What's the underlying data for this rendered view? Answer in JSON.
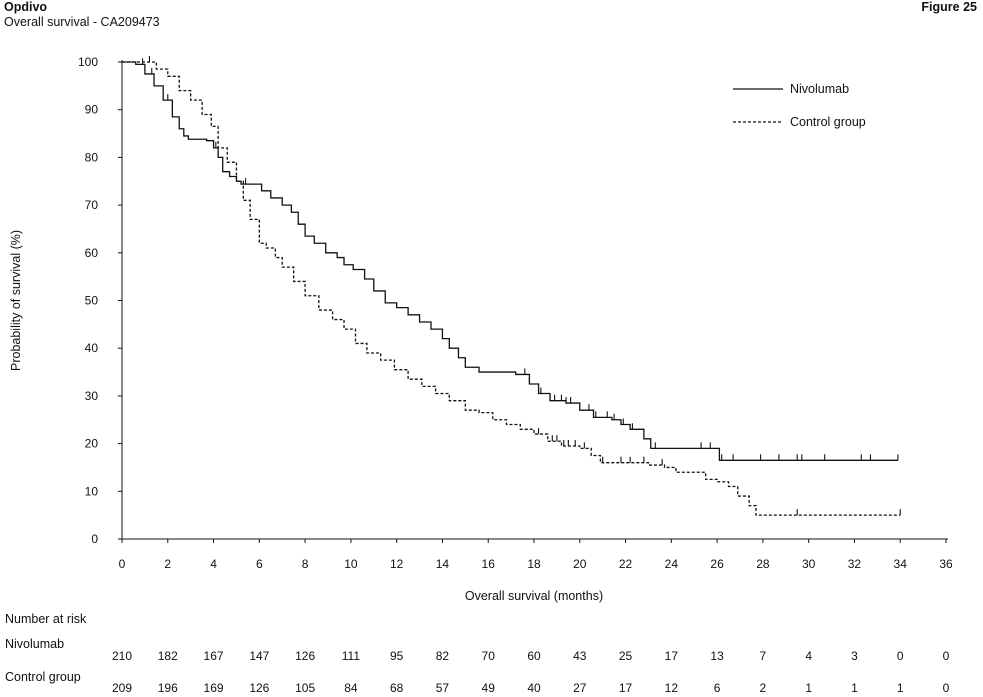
{
  "header": {
    "title": "Opdivo",
    "subtitle": "Overall survival - CA209473",
    "figure": "Figure 25"
  },
  "risk_table": {
    "heading": "Number at risk",
    "rows": [
      {
        "label": "Nivolumab",
        "values": [
          "210",
          "182",
          "167",
          "147",
          "126",
          "111",
          "95",
          "82",
          "70",
          "60",
          "43",
          "25",
          "17",
          "13",
          "7",
          "4",
          "3",
          "0",
          "0"
        ]
      },
      {
        "label": "Control group",
        "values": [
          "209",
          "196",
          "169",
          "126",
          "105",
          "84",
          "68",
          "57",
          "49",
          "40",
          "27",
          "17",
          "12",
          "6",
          "2",
          "1",
          "1",
          "1",
          "0"
        ]
      }
    ]
  },
  "chart_data": {
    "type": "line",
    "step": true,
    "xlabel": "Overall survival (months)",
    "ylabel": "Probability of survival (%)",
    "xlim": [
      0,
      36
    ],
    "ylim": [
      0,
      100
    ],
    "xticks": [
      0,
      2,
      4,
      6,
      8,
      10,
      12,
      14,
      16,
      18,
      20,
      22,
      24,
      26,
      28,
      30,
      32,
      34,
      36
    ],
    "yticks": [
      0,
      10,
      20,
      30,
      40,
      50,
      60,
      70,
      80,
      90,
      100
    ],
    "grid": false,
    "legend_position": "top-right",
    "series": [
      {
        "name": "Nivolumab",
        "line_style": "solid",
        "points": [
          [
            0,
            100
          ],
          [
            0.6,
            99.5
          ],
          [
            1.0,
            97.5
          ],
          [
            1.4,
            95
          ],
          [
            1.8,
            92
          ],
          [
            2.2,
            88.5
          ],
          [
            2.5,
            86
          ],
          [
            2.7,
            84.5
          ],
          [
            2.9,
            83.8
          ],
          [
            3.7,
            83.5
          ],
          [
            4.0,
            82
          ],
          [
            4.2,
            80
          ],
          [
            4.4,
            77
          ],
          [
            4.7,
            76
          ],
          [
            5.0,
            75
          ],
          [
            5.2,
            74.4
          ],
          [
            5.8,
            74.4
          ],
          [
            6.1,
            73
          ],
          [
            6.5,
            71.5
          ],
          [
            7.0,
            70
          ],
          [
            7.4,
            68.5
          ],
          [
            7.7,
            66
          ],
          [
            8.0,
            63.5
          ],
          [
            8.4,
            62
          ],
          [
            8.9,
            60
          ],
          [
            9.4,
            59
          ],
          [
            9.7,
            57.5
          ],
          [
            10.1,
            56.5
          ],
          [
            10.6,
            54.5
          ],
          [
            11.0,
            52
          ],
          [
            11.5,
            49.5
          ],
          [
            12.0,
            48.5
          ],
          [
            12.5,
            47
          ],
          [
            13.0,
            45.5
          ],
          [
            13.5,
            44
          ],
          [
            14.0,
            42
          ],
          [
            14.3,
            40
          ],
          [
            14.7,
            38
          ],
          [
            15.0,
            36
          ],
          [
            15.6,
            35
          ],
          [
            16.8,
            35
          ],
          [
            17.2,
            34.5
          ],
          [
            17.8,
            32.5
          ],
          [
            18.2,
            30.5
          ],
          [
            18.7,
            29
          ],
          [
            19.4,
            28.5
          ],
          [
            20.0,
            27
          ],
          [
            20.6,
            25.5
          ],
          [
            21.4,
            25
          ],
          [
            21.8,
            24
          ],
          [
            22.2,
            23
          ],
          [
            22.8,
            21
          ],
          [
            23.1,
            19
          ],
          [
            25.8,
            19
          ],
          [
            26.1,
            16.5
          ],
          [
            33.9,
            16.5
          ]
        ],
        "censor_times": [
          0.9,
          1.3,
          2.0,
          4.1,
          5.4,
          9.7,
          17.6,
          17.8,
          18.3,
          18.7,
          18.9,
          19.2,
          19.4,
          19.6,
          20.4,
          20.7,
          21.2,
          21.5,
          21.9,
          22.3,
          23.3,
          25.3,
          25.7,
          26.2,
          26.7,
          27.9,
          28.7,
          29.5,
          29.7,
          30.7,
          32.3,
          32.7,
          33.9
        ]
      },
      {
        "name": "Control group",
        "line_style": "dashed",
        "points": [
          [
            0,
            100
          ],
          [
            1.0,
            100
          ],
          [
            1.5,
            98.5
          ],
          [
            2.0,
            97
          ],
          [
            2.5,
            94
          ],
          [
            3.0,
            92
          ],
          [
            3.5,
            89
          ],
          [
            3.9,
            86.5
          ],
          [
            4.2,
            82
          ],
          [
            4.6,
            79
          ],
          [
            5.0,
            75
          ],
          [
            5.3,
            71
          ],
          [
            5.6,
            67
          ],
          [
            6.0,
            62
          ],
          [
            6.3,
            61
          ],
          [
            6.7,
            59
          ],
          [
            7.0,
            57
          ],
          [
            7.5,
            54
          ],
          [
            8.0,
            51
          ],
          [
            8.6,
            48
          ],
          [
            9.2,
            46
          ],
          [
            9.7,
            44
          ],
          [
            10.2,
            41
          ],
          [
            10.7,
            39
          ],
          [
            11.3,
            37.5
          ],
          [
            11.9,
            35.5
          ],
          [
            12.5,
            33.5
          ],
          [
            13.1,
            32
          ],
          [
            13.7,
            30.5
          ],
          [
            14.3,
            29
          ],
          [
            15.0,
            27
          ],
          [
            15.6,
            26.5
          ],
          [
            16.2,
            25
          ],
          [
            16.8,
            24
          ],
          [
            17.4,
            23
          ],
          [
            18.0,
            22
          ],
          [
            18.6,
            20.5
          ],
          [
            19.2,
            19.5
          ],
          [
            20.0,
            19
          ],
          [
            20.5,
            17.5
          ],
          [
            20.9,
            16
          ],
          [
            22.5,
            16
          ],
          [
            23.0,
            15.5
          ],
          [
            23.7,
            15
          ],
          [
            24.2,
            14
          ],
          [
            25.3,
            14
          ],
          [
            25.5,
            12.5
          ],
          [
            26.0,
            12
          ],
          [
            26.5,
            11
          ],
          [
            26.9,
            9
          ],
          [
            27.4,
            7
          ],
          [
            27.7,
            5
          ],
          [
            34.0,
            5
          ]
        ],
        "censor_times": [
          1.2,
          18.2,
          18.8,
          19.0,
          19.3,
          19.5,
          19.8,
          20.2,
          21.0,
          21.8,
          22.2,
          22.8,
          23.6,
          29.5,
          34.0
        ]
      }
    ]
  }
}
